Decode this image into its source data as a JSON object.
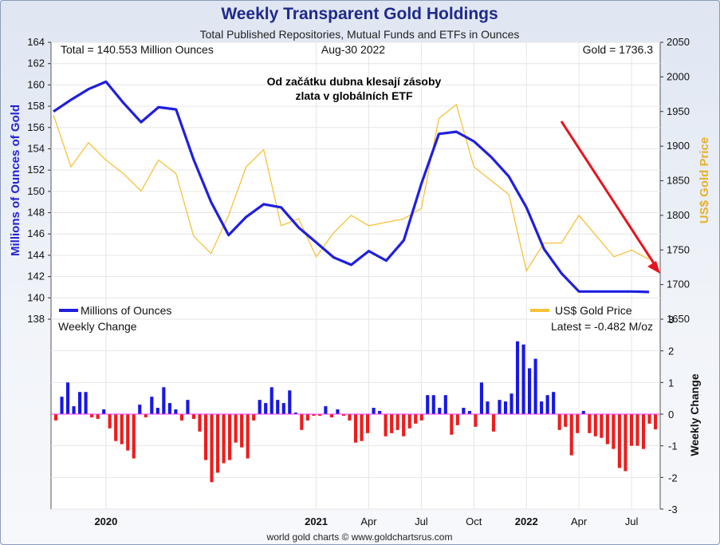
{
  "header": {
    "title": "Weekly Transparent Gold Holdings",
    "subtitle": "Total Published Repositories, Mutual Funds and ETFs in Ounces"
  },
  "top_panel": {
    "info_left": "Total = 140.553 Million Ounces",
    "info_date": "Aug-30  2022",
    "info_right": "Gold = 1736.3",
    "annotation_line1": "Od začátku dubna klesají zásoby",
    "annotation_line2": "zlata v globálních ETF",
    "legend_holdings": "Millions of Ounces",
    "legend_gold": "US$ Gold Price",
    "ylabel_left": "Millions of Ounces of Gold",
    "ylabel_right": "US$ Gold Price"
  },
  "bottom_panel": {
    "title": "Weekly Change",
    "latest": "Latest = -0.482 M/oz",
    "ylabel": "Weekly Change"
  },
  "x_axis": {
    "labels": [
      "2020",
      "2021",
      "Apr",
      "Jul",
      "Oct",
      "2022",
      "Apr",
      "Jul"
    ]
  },
  "footer": {
    "credit": "world gold charts © www.goldchartsrus.com"
  },
  "colors": {
    "holdings": "#1f1fe0",
    "gold_price": "#f7c23a",
    "positive": "#1717e6",
    "negative": "#ee1c1c",
    "trend_arrow": "#e8141e",
    "zero_line": "#ff33ff"
  },
  "chart_data": [
    {
      "type": "line",
      "title": "Weekly Transparent Gold Holdings",
      "x_range": [
        "2019-10",
        "2022-08-30"
      ],
      "y_left_label": "Millions of Ounces of Gold",
      "y_left_range": [
        138,
        164
      ],
      "y_left_ticks": [
        138,
        140,
        142,
        144,
        146,
        148,
        150,
        152,
        154,
        156,
        158,
        160,
        162,
        164
      ],
      "y_right_label": "US$ Gold Price",
      "y_right_range": [
        1650,
        2050
      ],
      "y_right_ticks": [
        1650,
        1700,
        1750,
        1800,
        1850,
        1900,
        1950,
        2000,
        2050
      ],
      "series": [
        {
          "name": "Millions of Ounces",
          "axis": "left",
          "x": [
            "2019-10",
            "2019-11",
            "2019-12",
            "2020-01",
            "2020-02",
            "2020-03",
            "2020-04",
            "2020-05",
            "2020-06",
            "2020-07",
            "2020-08",
            "2020-09",
            "2020-10",
            "2020-11",
            "2020-12",
            "2021-01",
            "2021-02",
            "2021-03",
            "2021-04",
            "2021-05",
            "2021-06",
            "2021-07",
            "2021-08",
            "2021-09",
            "2021-10",
            "2021-11",
            "2021-12",
            "2022-01",
            "2022-02",
            "2022-03",
            "2022-04",
            "2022-05",
            "2022-06",
            "2022-07",
            "2022-08"
          ],
          "values": [
            157.5,
            158.6,
            159.6,
            160.3,
            158.3,
            156.5,
            157.9,
            157.7,
            153.0,
            149.0,
            145.9,
            147.6,
            148.8,
            148.5,
            146.6,
            145.2,
            143.8,
            143.1,
            144.4,
            143.5,
            145.4,
            150.7,
            155.4,
            155.6,
            154.7,
            153.2,
            151.4,
            148.5,
            144.6,
            142.3,
            140.6,
            140.6,
            140.6,
            140.6,
            140.553
          ]
        },
        {
          "name": "US$ Gold Price",
          "axis": "right",
          "x": [
            "2019-10",
            "2019-11",
            "2019-12",
            "2020-01",
            "2020-02",
            "2020-03",
            "2020-04",
            "2020-05",
            "2020-06",
            "2020-07",
            "2020-08",
            "2020-09",
            "2020-10",
            "2020-11",
            "2020-12",
            "2021-01",
            "2021-02",
            "2021-03",
            "2021-04",
            "2021-05",
            "2021-06",
            "2021-07",
            "2021-08",
            "2021-09",
            "2021-10",
            "2021-11",
            "2021-12",
            "2022-01",
            "2022-02",
            "2022-03",
            "2022-04",
            "2022-05",
            "2022-06",
            "2022-07",
            "2022-08"
          ],
          "values": [
            1945,
            1870,
            1905,
            1880,
            1860,
            1835,
            1880,
            1860,
            1770,
            1745,
            1800,
            1870,
            1895,
            1785,
            1795,
            1740,
            1775,
            1800,
            1785,
            1790,
            1795,
            1810,
            1940,
            1960,
            1870,
            1850,
            1830,
            1720,
            1760,
            1760,
            1800,
            1770,
            1740,
            1750,
            1736.3
          ]
        }
      ]
    },
    {
      "type": "bar",
      "title": "Weekly Change",
      "latest": -0.482,
      "ylim": [
        -3,
        3
      ],
      "y_ticks": [
        -3,
        -2,
        -1,
        0,
        1,
        2,
        3
      ],
      "values": [
        -0.2,
        0.55,
        1.0,
        0.25,
        0.7,
        0.7,
        -0.1,
        -0.15,
        0.15,
        -0.45,
        -0.85,
        -0.95,
        -1.15,
        -1.4,
        0.3,
        -0.1,
        0.55,
        0.2,
        0.85,
        0.35,
        0.15,
        -0.2,
        0.45,
        -0.15,
        -0.55,
        -1.45,
        -2.15,
        -1.85,
        -1.55,
        -1.45,
        -0.9,
        -1.05,
        -1.4,
        -0.2,
        0.45,
        0.35,
        0.85,
        0.45,
        0.35,
        0.75,
        0.05,
        -0.5,
        -0.2,
        -0.05,
        -0.05,
        0.25,
        -0.1,
        0.15,
        -0.05,
        -0.2,
        -0.9,
        -0.85,
        -0.6,
        0.2,
        0.1,
        -0.7,
        -0.6,
        -0.5,
        -0.7,
        -0.45,
        -0.3,
        -0.2,
        0.6,
        0.6,
        0.2,
        0.6,
        -0.65,
        -0.35,
        0.2,
        0.1,
        -0.4,
        1.0,
        0.4,
        -0.55,
        0.45,
        0.4,
        0.65,
        2.3,
        2.2,
        1.45,
        1.75,
        0.4,
        0.6,
        0.7,
        -0.5,
        -0.4,
        -1.3,
        -0.6,
        0.1,
        -0.6,
        -0.7,
        -0.75,
        -0.95,
        -1.1,
        -1.7,
        -1.8,
        -1.0,
        -1.0,
        -1.1,
        -0.3,
        -0.482
      ]
    }
  ]
}
